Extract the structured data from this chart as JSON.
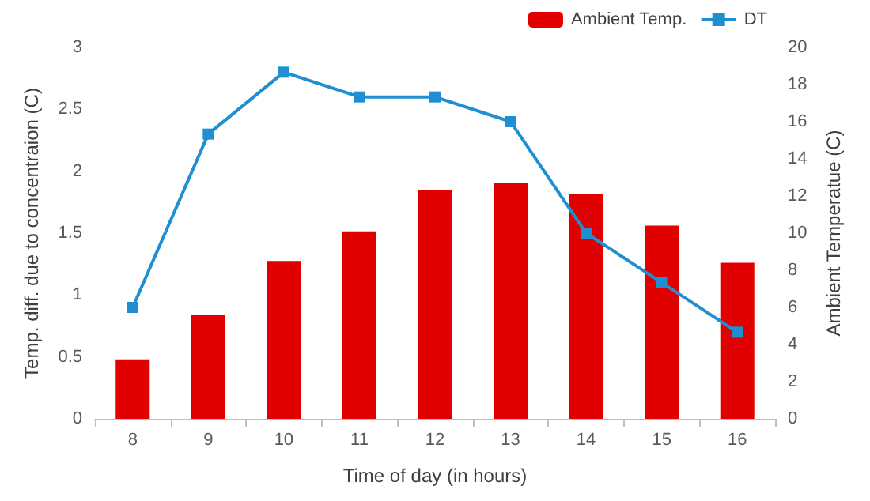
{
  "chart_data": {
    "type": "bar",
    "xlabel": "Time of day (in hours)",
    "ylabel": "Temp. diff. due to concentraion (C)",
    "y2label": "Ambient Temperatue (C)",
    "categories": [
      "8",
      "9",
      "10",
      "11",
      "12",
      "13",
      "14",
      "15",
      "16"
    ],
    "series": [
      {
        "name": "Ambient Temp.",
        "axis": "y2",
        "color": "#e00000",
        "values": [
          3.2,
          5.6,
          8.5,
          10.1,
          12.3,
          12.7,
          12.1,
          10.4,
          8.4
        ]
      },
      {
        "name": "DT",
        "type": "line",
        "color": "#1f8fd2",
        "marker": "square",
        "values": [
          0.9,
          2.3,
          2.8,
          2.6,
          2.6,
          2.4,
          1.5,
          1.1,
          0.7
        ]
      }
    ],
    "ylim": [
      0,
      3
    ],
    "yticks": [
      0,
      0.5,
      1,
      1.5,
      2,
      2.5,
      3
    ],
    "y2lim": [
      0,
      20
    ],
    "y2ticks": [
      0,
      2,
      4,
      6,
      8,
      10,
      12,
      14,
      16,
      18,
      20
    ],
    "grid": false,
    "legend": "top right"
  }
}
